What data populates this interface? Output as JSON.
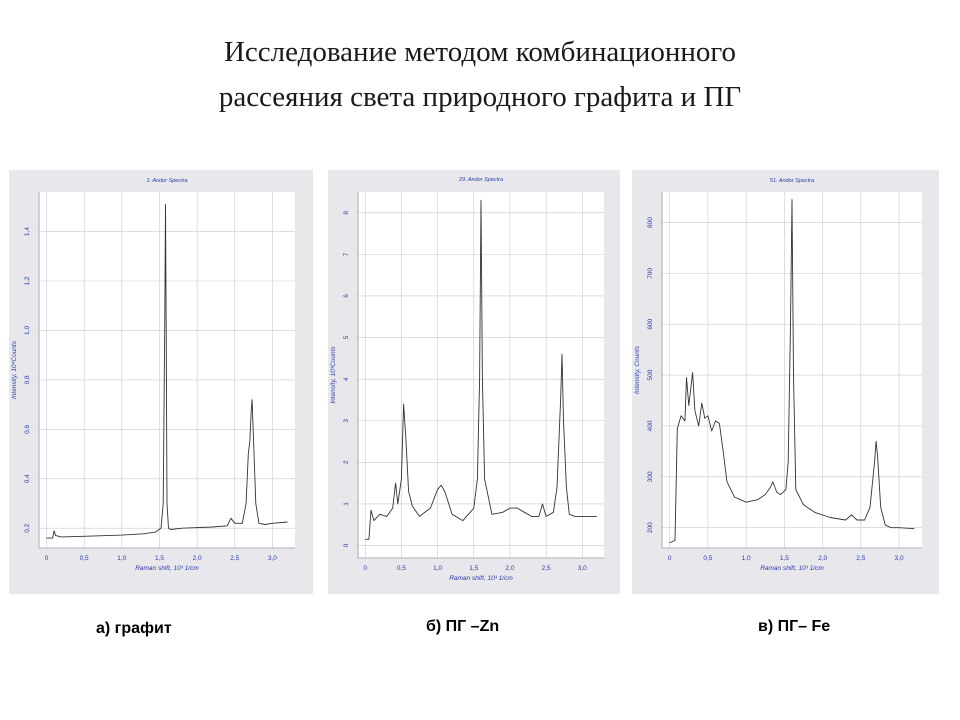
{
  "slide": {
    "title_line1": "Исследование методом комбинационного",
    "title_line2": "рассеяния света  природного графита  и ПГ"
  },
  "captions": [
    "а) графит",
    "б) ПГ –Zn",
    "в)  ПГ– Fe"
  ],
  "chart_data": [
    {
      "type": "line",
      "title": "1. Andor Spectra",
      "xlabel": "Raman shift, 10³ 1/cm",
      "ylabel": "Intensity, 10⁴Counts",
      "xlim": [
        -0.1,
        3.3
      ],
      "ylim": [
        0.12,
        1.56
      ],
      "xticks": [
        "0",
        "0,5",
        "1,0",
        "1,5",
        "2,0",
        "2,5",
        "3,0"
      ],
      "xtick_values": [
        0,
        0.5,
        1.0,
        1.5,
        2.0,
        2.5,
        3.0
      ],
      "yticks": [
        "0,2",
        "0,4",
        "0,6",
        "0,8",
        "1,0",
        "1,2",
        "1,4"
      ],
      "ytick_values": [
        0.2,
        0.4,
        0.6,
        0.8,
        1.0,
        1.2,
        1.4
      ],
      "grid": true,
      "series": [
        {
          "x": [
            0.0,
            0.08,
            0.1,
            0.12,
            0.2,
            0.6,
            1.0,
            1.3,
            1.45,
            1.52,
            1.55,
            1.57,
            1.58,
            1.59,
            1.6,
            1.62,
            1.65,
            1.8,
            2.2,
            2.4,
            2.45,
            2.5,
            2.6,
            2.65,
            2.68,
            2.7,
            2.72,
            2.73,
            2.75,
            2.78,
            2.82,
            2.9,
            3.0,
            3.2
          ],
          "y": [
            0.16,
            0.16,
            0.19,
            0.17,
            0.165,
            0.168,
            0.172,
            0.178,
            0.185,
            0.2,
            0.3,
            1.0,
            1.51,
            1.0,
            0.3,
            0.2,
            0.195,
            0.2,
            0.205,
            0.21,
            0.24,
            0.22,
            0.22,
            0.3,
            0.5,
            0.55,
            0.68,
            0.72,
            0.55,
            0.3,
            0.22,
            0.215,
            0.22,
            0.225
          ]
        }
      ]
    },
    {
      "type": "line",
      "title": "29. Andor Spectra",
      "xlabel": "Raman shift, 10³ 1/cm",
      "ylabel": "Intensity, 10³Counts",
      "xlim": [
        -0.1,
        3.3
      ],
      "ylim": [
        -0.3,
        8.5
      ],
      "xticks": [
        "0",
        "0,5",
        "1,0",
        "1,5",
        "2,0",
        "2,5",
        "3,0"
      ],
      "xtick_values": [
        0,
        0.5,
        1.0,
        1.5,
        2.0,
        2.5,
        3.0
      ],
      "yticks": [
        "0",
        "1",
        "2",
        "3",
        "4",
        "5",
        "6",
        "7",
        "8"
      ],
      "ytick_values": [
        0,
        1,
        2,
        3,
        4,
        5,
        6,
        7,
        8
      ],
      "grid": true,
      "series": [
        {
          "x": [
            0.0,
            0.05,
            0.08,
            0.12,
            0.2,
            0.3,
            0.38,
            0.42,
            0.45,
            0.5,
            0.53,
            0.56,
            0.6,
            0.65,
            0.75,
            0.9,
            1.0,
            1.05,
            1.1,
            1.2,
            1.35,
            1.5,
            1.55,
            1.58,
            1.6,
            1.62,
            1.65,
            1.75,
            1.9,
            2.0,
            2.1,
            2.2,
            2.3,
            2.4,
            2.45,
            2.5,
            2.6,
            2.65,
            2.7,
            2.72,
            2.74,
            2.78,
            2.82,
            2.9,
            3.0,
            3.2
          ],
          "y": [
            0.15,
            0.15,
            0.85,
            0.6,
            0.75,
            0.7,
            0.9,
            1.5,
            1.0,
            1.6,
            3.4,
            2.6,
            1.3,
            0.95,
            0.7,
            0.9,
            1.35,
            1.45,
            1.3,
            0.75,
            0.6,
            0.9,
            1.6,
            4.0,
            8.3,
            4.0,
            1.6,
            0.75,
            0.8,
            0.9,
            0.9,
            0.8,
            0.7,
            0.7,
            1.0,
            0.7,
            0.8,
            1.4,
            3.5,
            4.6,
            3.0,
            1.4,
            0.75,
            0.7,
            0.7,
            0.7
          ]
        }
      ]
    },
    {
      "type": "line",
      "title": "51. Andor Spectra",
      "xlabel": "Raman shift, 10³ 1/cm",
      "ylabel": "Intensity, Counts",
      "xlim": [
        -0.1,
        3.3
      ],
      "ylim": [
        160,
        860
      ],
      "xticks": [
        "0",
        "0,5",
        "1,0",
        "1,5",
        "2,0",
        "2,5",
        "3,0"
      ],
      "xtick_values": [
        0,
        0.5,
        1.0,
        1.5,
        2.0,
        2.5,
        3.0
      ],
      "yticks": [
        "200",
        "300",
        "400",
        "500",
        "600",
        "700",
        "800"
      ],
      "ytick_values": [
        200,
        300,
        400,
        500,
        600,
        700,
        800
      ],
      "grid": true,
      "series": [
        {
          "x": [
            0.0,
            0.07,
            0.1,
            0.15,
            0.2,
            0.22,
            0.25,
            0.3,
            0.33,
            0.38,
            0.42,
            0.46,
            0.5,
            0.55,
            0.6,
            0.65,
            0.7,
            0.75,
            0.85,
            1.0,
            1.15,
            1.25,
            1.32,
            1.35,
            1.4,
            1.45,
            1.52,
            1.55,
            1.58,
            1.6,
            1.62,
            1.65,
            1.75,
            1.9,
            2.1,
            2.3,
            2.38,
            2.45,
            2.55,
            2.62,
            2.68,
            2.7,
            2.72,
            2.76,
            2.82,
            2.9,
            3.0,
            3.2
          ],
          "y": [
            170,
            175,
            395,
            420,
            410,
            495,
            440,
            505,
            430,
            400,
            445,
            415,
            420,
            390,
            410,
            405,
            350,
            290,
            260,
            250,
            255,
            265,
            280,
            290,
            270,
            265,
            275,
            330,
            600,
            845,
            500,
            275,
            245,
            230,
            220,
            215,
            225,
            215,
            215,
            240,
            330,
            370,
            340,
            240,
            205,
            200,
            200,
            198
          ]
        }
      ]
    }
  ]
}
